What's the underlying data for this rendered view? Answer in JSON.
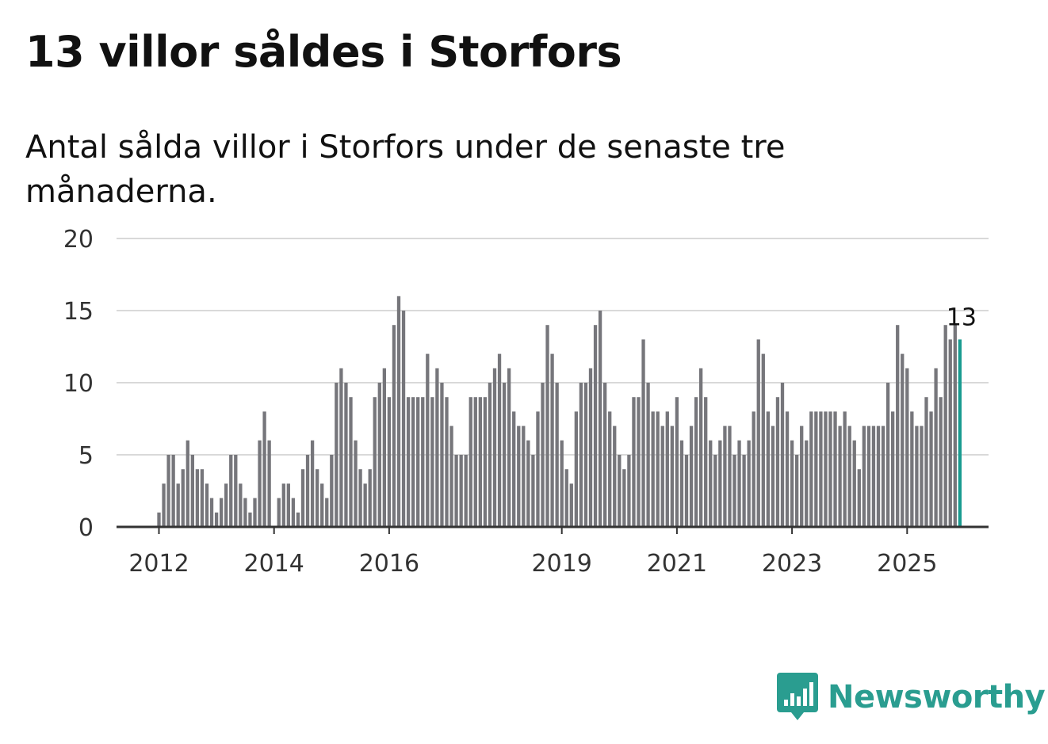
{
  "title": "13 villor såldes i Storfors",
  "subtitle": "Antal sålda villor i Storfors under de senaste tre månaderna.",
  "brand": {
    "name": "Newsworthy",
    "icon": "newsworthy-logo-icon",
    "color": "#2a9d90"
  },
  "chart_data": {
    "type": "bar",
    "title": "13 villor såldes i Storfors",
    "xlabel": "",
    "ylabel": "",
    "ylim": [
      0,
      20
    ],
    "yticks": [
      "0",
      "5",
      "10",
      "15",
      "20"
    ],
    "x_start_index": 0,
    "xticks": [
      {
        "label": "2012",
        "index": 0
      },
      {
        "label": "2014",
        "index": 24
      },
      {
        "label": "2016",
        "index": 48
      },
      {
        "label": "2019",
        "index": 84
      },
      {
        "label": "2021",
        "index": 108
      },
      {
        "label": "2023",
        "index": 132
      },
      {
        "label": "2025",
        "index": 156
      }
    ],
    "bar_color": "#76767b",
    "highlight_color": "#1a9c91",
    "highlight_label": "13",
    "values": [
      1,
      3,
      5,
      5,
      3,
      4,
      6,
      5,
      4,
      4,
      3,
      2,
      1,
      2,
      3,
      5,
      5,
      3,
      2,
      1,
      2,
      6,
      8,
      6,
      0,
      2,
      3,
      3,
      2,
      1,
      4,
      5,
      6,
      4,
      3,
      2,
      5,
      10,
      11,
      10,
      9,
      6,
      4,
      3,
      4,
      9,
      10,
      11,
      9,
      14,
      16,
      15,
      9,
      9,
      9,
      9,
      12,
      9,
      11,
      10,
      9,
      7,
      5,
      5,
      5,
      9,
      9,
      9,
      9,
      10,
      11,
      12,
      10,
      11,
      8,
      7,
      7,
      6,
      5,
      8,
      10,
      14,
      12,
      10,
      6,
      4,
      3,
      8,
      10,
      10,
      11,
      14,
      15,
      10,
      8,
      7,
      5,
      4,
      5,
      9,
      9,
      13,
      10,
      8,
      8,
      7,
      8,
      7,
      9,
      6,
      5,
      7,
      9,
      11,
      9,
      6,
      5,
      6,
      7,
      7,
      5,
      6,
      5,
      6,
      8,
      13,
      12,
      8,
      7,
      9,
      10,
      8,
      6,
      5,
      7,
      6,
      8,
      8,
      8,
      8,
      8,
      8,
      7,
      8,
      7,
      6,
      4,
      7,
      7,
      7,
      7,
      7,
      10,
      8,
      14,
      12,
      11,
      8,
      7,
      7,
      9,
      8,
      11,
      9,
      14,
      13,
      14,
      13
    ]
  }
}
